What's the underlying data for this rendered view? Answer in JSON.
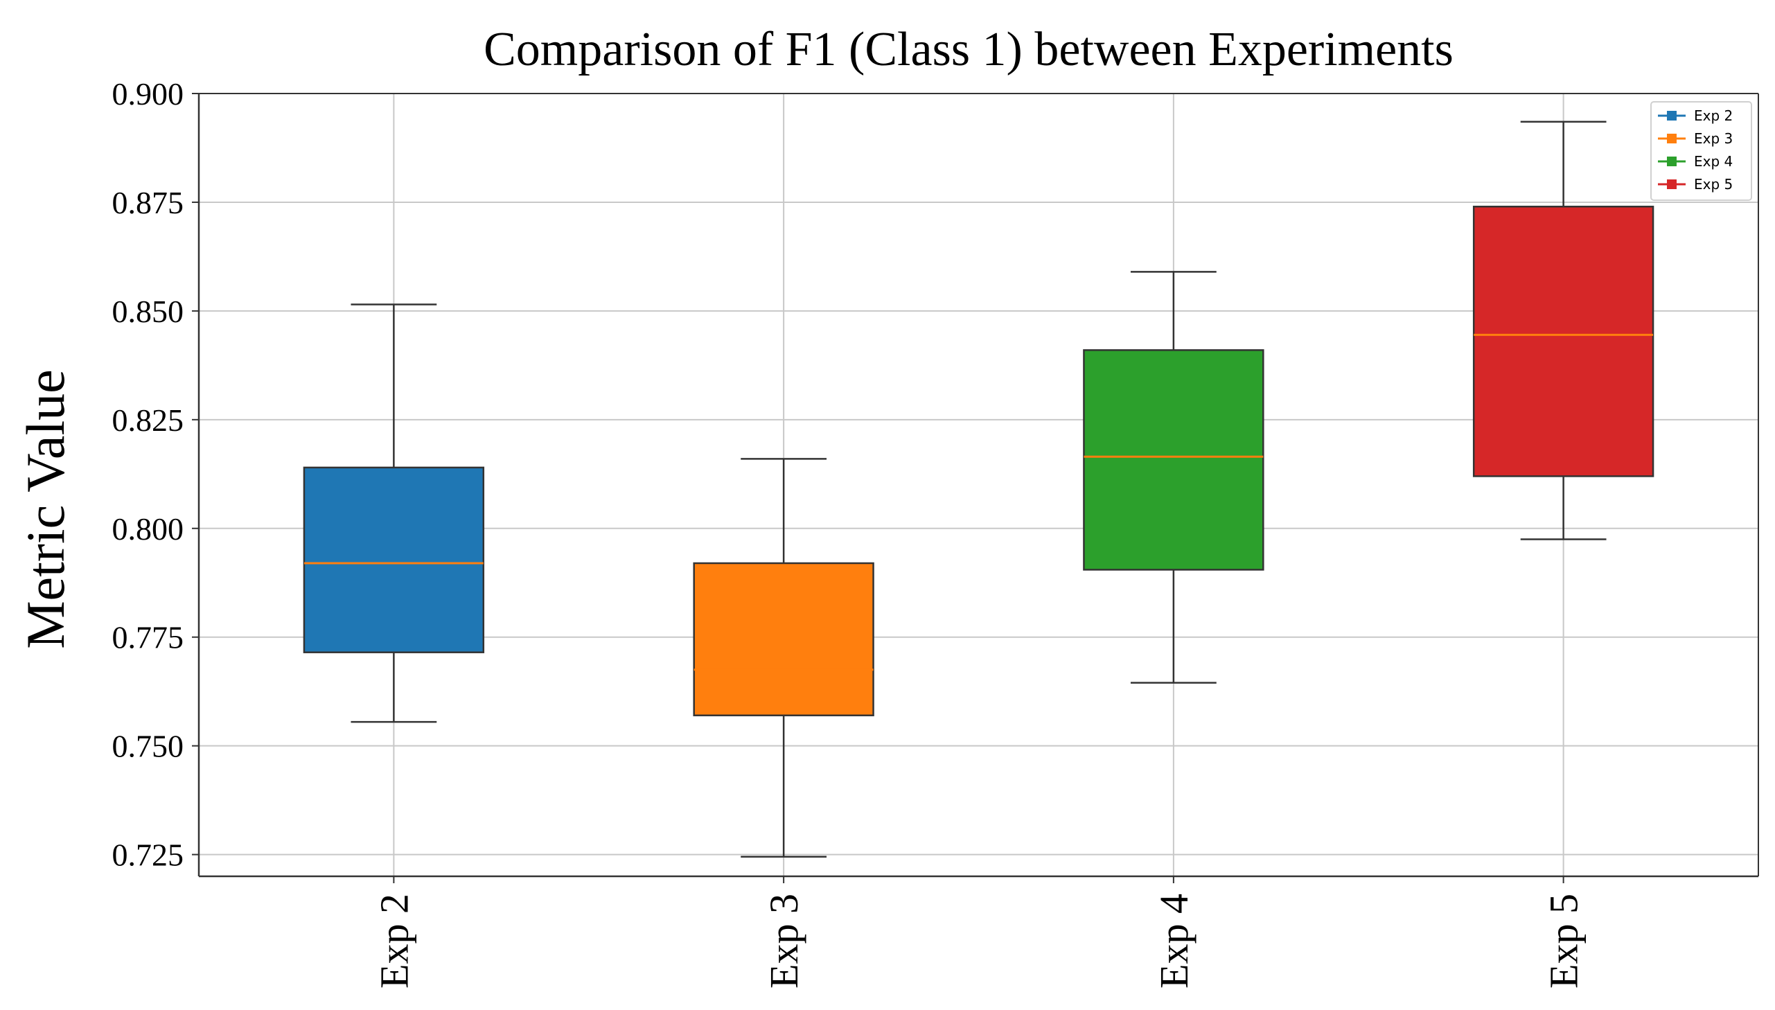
{
  "chart_data": {
    "type": "box",
    "title": "Comparison of F1 (Class 1) between Experiments",
    "xlabel": "",
    "ylabel": "Metric Value",
    "ylim": [
      0.72,
      0.9
    ],
    "yticks": [
      0.725,
      0.75,
      0.775,
      0.8,
      0.825,
      0.85,
      0.875,
      0.9
    ],
    "ytick_labels": [
      "0.725",
      "0.750",
      "0.775",
      "0.800",
      "0.825",
      "0.850",
      "0.875",
      "0.900"
    ],
    "grid": true,
    "legend_position": "top-right",
    "categories": [
      "Exp 2",
      "Exp 3",
      "Exp 4",
      "Exp 5"
    ],
    "series": [
      {
        "name": "Exp 2",
        "color": "#1f77b4",
        "min": 0.7555,
        "q1": 0.7715,
        "median": 0.792,
        "q3": 0.814,
        "max": 0.8515
      },
      {
        "name": "Exp 3",
        "color": "#ff7f0e",
        "min": 0.7245,
        "q1": 0.757,
        "median": 0.7675,
        "q3": 0.792,
        "max": 0.816
      },
      {
        "name": "Exp 4",
        "color": "#2ca02c",
        "min": 0.7645,
        "q1": 0.7905,
        "median": 0.8165,
        "q3": 0.841,
        "max": 0.859
      },
      {
        "name": "Exp 5",
        "color": "#d62728",
        "min": 0.7975,
        "q1": 0.812,
        "median": 0.8445,
        "q3": 0.874,
        "max": 0.8935
      }
    ],
    "median_color": "#ff7f0e"
  }
}
